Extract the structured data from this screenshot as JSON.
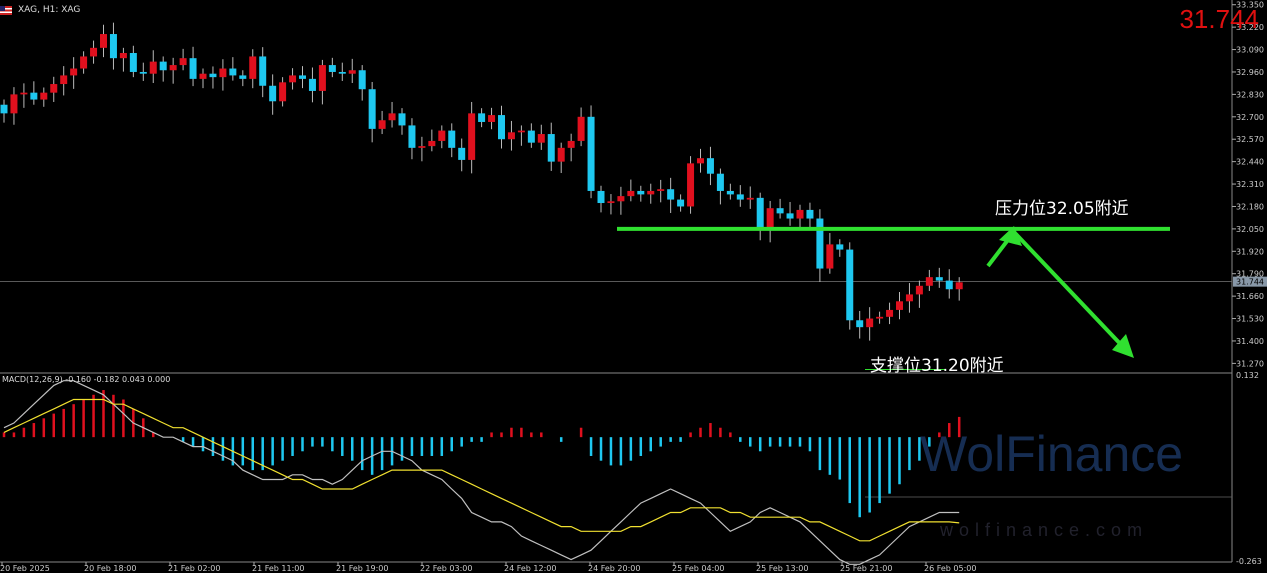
{
  "header": {
    "symbol_text": "XAG, H1:  XAG"
  },
  "current_price": "31.744",
  "annotations": {
    "resistance": "压力位32.05附近",
    "support": "支撑位31.20附近"
  },
  "macd_label": "MACD(12,26,9) -0.160 -0.182 0.043 0.000",
  "watermark": {
    "brand": "WolFinance",
    "url": "wolfinance.com"
  },
  "colors": {
    "background": "#000000",
    "bull": "#e0101e",
    "bear": "#1ec8f0",
    "signal_line": "#f0e030",
    "macd_line": "#c0c0c0",
    "annotation": "#30e030",
    "axis_text": "#cccccc"
  },
  "chart_data": [
    {
      "type": "candlestick",
      "price_ticks": [
        "33.350",
        "33.220",
        "33.090",
        "32.960",
        "32.830",
        "32.700",
        "32.570",
        "32.440",
        "32.310",
        "32.180",
        "32.050",
        "31.920",
        "31.790",
        "31.660",
        "31.530",
        "31.400",
        "31.270"
      ],
      "ylim": [
        31.22,
        33.36
      ],
      "time_labels": [
        "20 Feb 2025",
        "20 Feb 18:00",
        "21 Feb 02:00",
        "21 Feb 11:00",
        "21 Feb 19:00",
        "22 Feb 03:00",
        "24 Feb 12:00",
        "24 Feb 20:00",
        "25 Feb 04:00",
        "25 Feb 13:00",
        "25 Feb 21:00",
        "26 Feb 05:00"
      ],
      "current": 31.744,
      "resistance": 32.05,
      "support": 31.2,
      "closes": [
        32.72,
        32.83,
        32.84,
        32.8,
        32.84,
        32.89,
        32.94,
        32.98,
        33.05,
        33.1,
        33.18,
        33.04,
        33.07,
        32.96,
        32.95,
        33.02,
        32.97,
        33.0,
        33.04,
        32.92,
        32.95,
        32.93,
        32.98,
        32.94,
        32.92,
        33.05,
        32.88,
        32.79,
        32.9,
        32.94,
        32.92,
        32.85,
        33.0,
        32.96,
        32.95,
        32.97,
        32.86,
        32.63,
        32.68,
        32.72,
        32.65,
        32.52,
        32.53,
        32.56,
        32.62,
        32.52,
        32.45,
        32.72,
        32.67,
        32.71,
        32.57,
        32.61,
        32.62,
        32.55,
        32.6,
        32.44,
        32.52,
        32.56,
        32.7,
        32.27,
        32.2,
        32.21,
        32.24,
        32.27,
        32.25,
        32.27,
        32.28,
        32.22,
        32.18,
        32.43,
        32.46,
        32.37,
        32.27,
        32.25,
        32.22,
        32.23,
        32.05,
        32.17,
        32.14,
        32.11,
        32.16,
        32.11,
        31.82,
        31.96,
        31.93,
        31.52,
        31.48,
        31.53,
        31.54,
        31.58,
        31.63,
        31.67,
        31.72,
        31.77,
        31.75,
        31.7,
        31.74
      ],
      "macd": {
        "ylim": [
          -0.263,
          0.132
        ],
        "ticks": [
          "0.132",
          "-0.263"
        ],
        "histogram": [
          0.01,
          0.01,
          0.02,
          0.03,
          0.04,
          0.05,
          0.06,
          0.07,
          0.08,
          0.09,
          0.1,
          0.09,
          0.08,
          0.06,
          0.04,
          0.01,
          0,
          0,
          -0.01,
          -0.02,
          -0.03,
          -0.04,
          -0.05,
          -0.06,
          -0.06,
          -0.07,
          -0.07,
          -0.06,
          -0.05,
          -0.04,
          -0.03,
          -0.02,
          -0.02,
          -0.03,
          -0.04,
          -0.05,
          -0.07,
          -0.08,
          -0.07,
          -0.06,
          -0.05,
          -0.04,
          -0.04,
          -0.04,
          -0.04,
          -0.03,
          -0.02,
          -0.01,
          -0.01,
          0.01,
          0.01,
          0.02,
          0.02,
          0.01,
          0.01,
          0,
          -0.01,
          0,
          0.02,
          -0.04,
          -0.05,
          -0.06,
          -0.06,
          -0.05,
          -0.04,
          -0.03,
          -0.02,
          -0.01,
          -0.01,
          0.01,
          0.02,
          0.03,
          0.02,
          0.01,
          -0.01,
          -0.02,
          -0.03,
          -0.02,
          -0.02,
          -0.02,
          -0.02,
          -0.03,
          -0.07,
          -0.08,
          -0.09,
          -0.14,
          -0.17,
          -0.16,
          -0.14,
          -0.12,
          -0.1,
          -0.07,
          -0.05,
          -0.02,
          0.01,
          0.03,
          0.043
        ],
        "macd_line": [
          0.02,
          0.03,
          0.05,
          0.07,
          0.09,
          0.11,
          0.12,
          0.12,
          0.11,
          0.1,
          0.09,
          0.07,
          0.05,
          0.03,
          0.02,
          0.01,
          0,
          0,
          -0.01,
          -0.02,
          -0.02,
          -0.03,
          -0.04,
          -0.05,
          -0.07,
          -0.08,
          -0.09,
          -0.09,
          -0.09,
          -0.08,
          -0.08,
          -0.09,
          -0.09,
          -0.1,
          -0.09,
          -0.07,
          -0.05,
          -0.04,
          -0.03,
          -0.03,
          -0.04,
          -0.05,
          -0.07,
          -0.08,
          -0.09,
          -0.11,
          -0.13,
          -0.16,
          -0.17,
          -0.18,
          -0.18,
          -0.19,
          -0.21,
          -0.22,
          -0.23,
          -0.24,
          -0.25,
          -0.26,
          -0.25,
          -0.24,
          -0.22,
          -0.2,
          -0.18,
          -0.16,
          -0.14,
          -0.13,
          -0.12,
          -0.11,
          -0.12,
          -0.13,
          -0.14,
          -0.16,
          -0.18,
          -0.2,
          -0.19,
          -0.18,
          -0.16,
          -0.15,
          -0.16,
          -0.17,
          -0.18,
          -0.2,
          -0.22,
          -0.24,
          -0.26,
          -0.27,
          -0.27,
          -0.26,
          -0.25,
          -0.23,
          -0.21,
          -0.19,
          -0.18,
          -0.17,
          -0.16,
          -0.16,
          -0.16
        ],
        "signal_line": [
          0.01,
          0.02,
          0.03,
          0.04,
          0.05,
          0.06,
          0.07,
          0.08,
          0.08,
          0.08,
          0.08,
          0.07,
          0.07,
          0.06,
          0.05,
          0.04,
          0.03,
          0.02,
          0.02,
          0.01,
          0,
          -0.01,
          -0.02,
          -0.03,
          -0.04,
          -0.05,
          -0.06,
          -0.07,
          -0.08,
          -0.09,
          -0.09,
          -0.1,
          -0.11,
          -0.11,
          -0.11,
          -0.11,
          -0.1,
          -0.09,
          -0.08,
          -0.07,
          -0.07,
          -0.07,
          -0.07,
          -0.07,
          -0.07,
          -0.08,
          -0.09,
          -0.1,
          -0.11,
          -0.12,
          -0.13,
          -0.14,
          -0.15,
          -0.16,
          -0.17,
          -0.18,
          -0.19,
          -0.19,
          -0.2,
          -0.2,
          -0.2,
          -0.2,
          -0.2,
          -0.19,
          -0.19,
          -0.18,
          -0.17,
          -0.16,
          -0.16,
          -0.15,
          -0.15,
          -0.15,
          -0.15,
          -0.16,
          -0.16,
          -0.17,
          -0.17,
          -0.17,
          -0.17,
          -0.17,
          -0.17,
          -0.18,
          -0.18,
          -0.19,
          -0.2,
          -0.21,
          -0.22,
          -0.22,
          -0.21,
          -0.2,
          -0.19,
          -0.18,
          -0.18,
          -0.18,
          -0.18,
          -0.18,
          -0.182
        ]
      }
    }
  ]
}
